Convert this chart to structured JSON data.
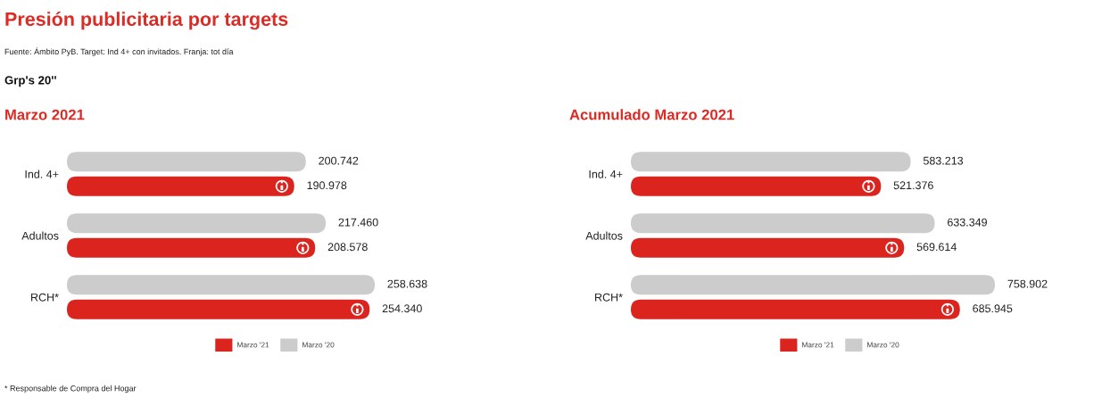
{
  "chart_data": [
    {
      "type": "other",
      "title": "Presión publicitaria por targets",
      "subtitle": "Grp's 20''",
      "annotations": [
        "Fuente: Ámbito PyB. Target: Ind 4+ con invitados. Franja: tot día"
      ]
    },
    {
      "type": "bar",
      "orientation": "horizontal",
      "title": "Marzo 2021",
      "categories": [
        "Ind. 4+",
        "Adultos",
        "RCH*"
      ],
      "series": [
        {
          "name": "Marzo '21",
          "color": "#dc241f",
          "values": [
            190.978,
            208.578,
            254.34
          ],
          "value_labels": [
            "190.978",
            "208.578",
            "254.340"
          ]
        },
        {
          "name": "Marzo '20",
          "color": "#cccccc",
          "values": [
            200.742,
            217.46,
            258.638
          ],
          "value_labels": [
            "200.742",
            "217.460",
            "258.638"
          ]
        }
      ],
      "legend": "bottom",
      "tick_labels": "y",
      "annotations": [
        "* Responsable de Compra del Hogar"
      ]
    },
    {
      "type": "bar",
      "orientation": "horizontal",
      "title": "Acumulado Marzo 2021",
      "categories": [
        "Ind. 4+",
        "Adultos",
        "RCH*"
      ],
      "series": [
        {
          "name": "Marzo '21",
          "color": "#dc241f",
          "values": [
            521.376,
            569.614,
            685.945
          ],
          "value_labels": [
            "521.376",
            "569.614",
            "685.945"
          ]
        },
        {
          "name": "Marzo '20",
          "color": "#cccccc",
          "values": [
            583.213,
            633.349,
            758.902
          ],
          "value_labels": [
            "583.213",
            "633.349",
            "758.902"
          ]
        }
      ],
      "legend": "bottom",
      "tick_labels": "y"
    }
  ]
}
